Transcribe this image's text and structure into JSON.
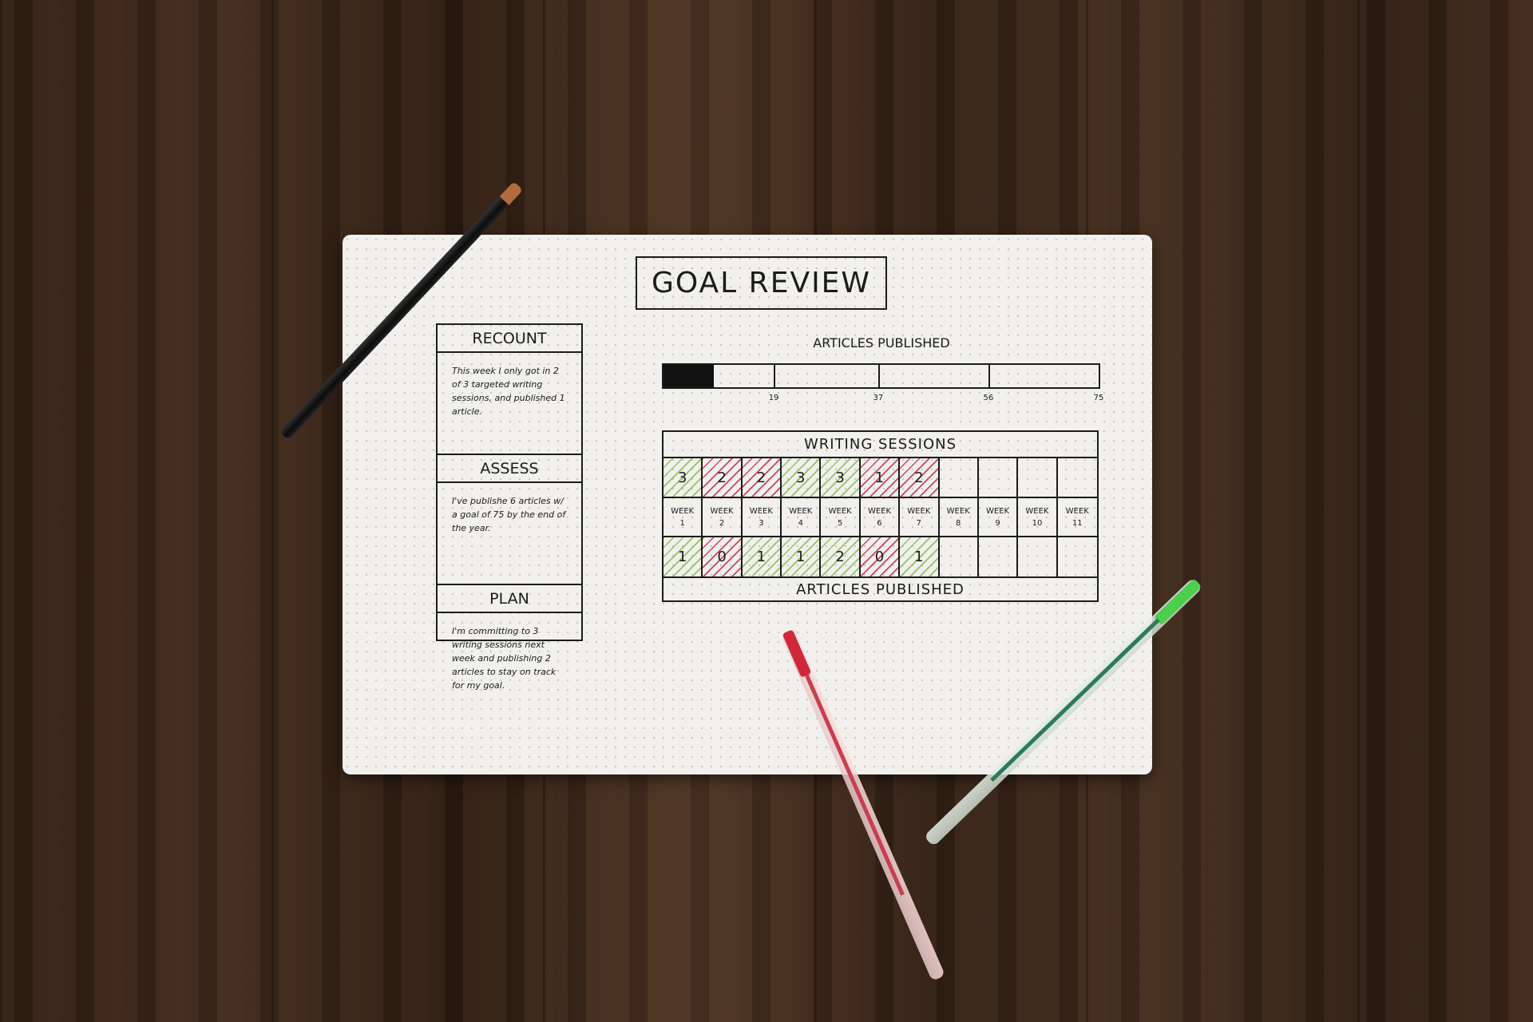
{
  "title": "GOAL REVIEW",
  "sections": [
    {
      "heading": "RECOUNT",
      "text": "This week I only got in 2 of 3 targeted writing sessions, and published 1 article."
    },
    {
      "heading": "ASSESS",
      "text": "I've publishe 6 articles w/ a goal of 75 by the end of the year."
    },
    {
      "heading": "PLAN",
      "text": "I'm committing to 3 writing sessions next week and publishing 2 articles to stay on track for my goal."
    }
  ],
  "progress": {
    "label": "ARTICLES PUBLISHED",
    "value": 6,
    "max": 75,
    "ticks": [
      "19",
      "37",
      "56",
      "75"
    ]
  },
  "table": {
    "header": "WRITING SESSIONS",
    "footer": "ARTICLES PUBLISHED",
    "weeks": [
      "WEEK 1",
      "WEEK 2",
      "WEEK 3",
      "WEEK 4",
      "WEEK 5",
      "WEEK 6",
      "WEEK 7",
      "WEEK 8",
      "WEEK 9",
      "WEEK 10",
      "WEEK 11"
    ],
    "sessions": [
      "3",
      "2",
      "2",
      "3",
      "3",
      "1",
      "2",
      "",
      "",
      "",
      ""
    ],
    "sessions_status": [
      "met",
      "missed",
      "missed",
      "met",
      "met",
      "missed",
      "missed"
    ],
    "articles": [
      "1",
      "0",
      "1",
      "1",
      "2",
      "0",
      "1",
      "",
      "",
      "",
      ""
    ],
    "articles_status": [
      "met",
      "missed",
      "met",
      "met",
      "met",
      "missed",
      "met"
    ],
    "colors": {
      "met": "#8fc46a",
      "missed": "#c8475d"
    }
  },
  "objects": [
    "black pen",
    "red gel pen",
    "green gel pen"
  ]
}
